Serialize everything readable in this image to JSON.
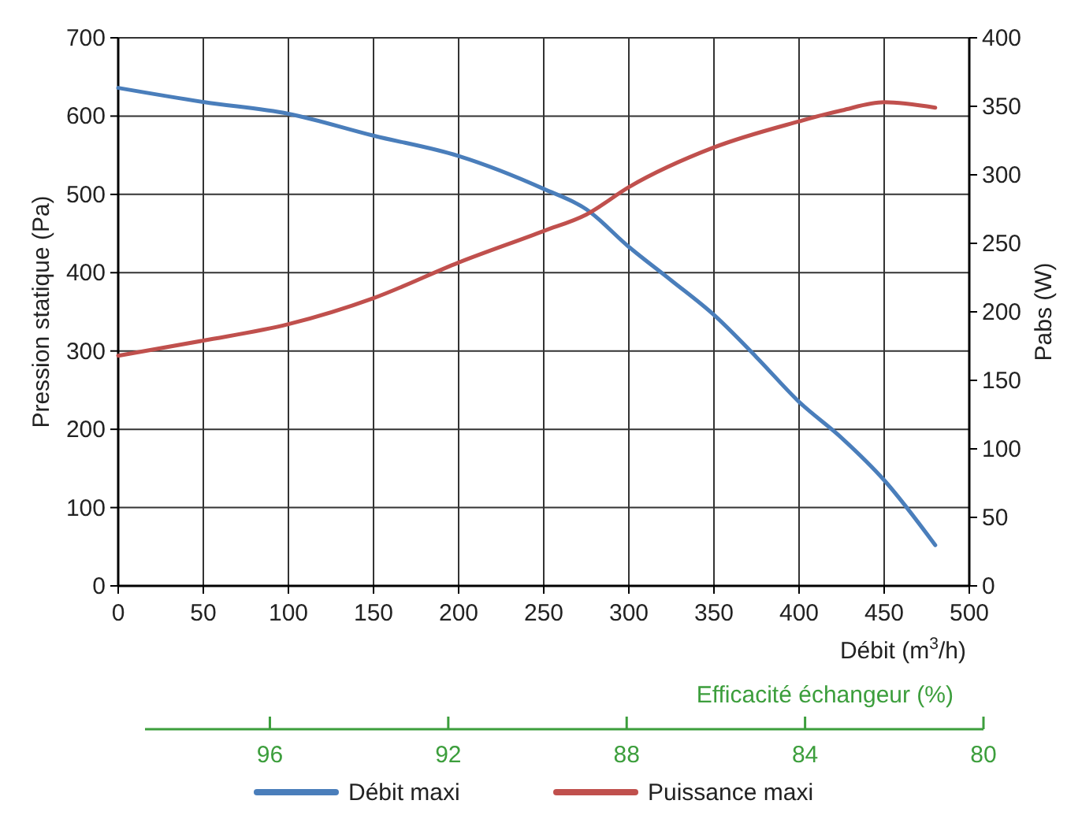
{
  "chart_data": {
    "type": "line",
    "xlabel": "Débit (m$^{3}$/h)",
    "ylabel": "Pression statique (Pa)",
    "y2label": "Pabs (W)",
    "x2label": "Efficacité échangeur (%)",
    "xlim": [
      0,
      500
    ],
    "xticks": [
      0,
      50,
      100,
      150,
      200,
      250,
      300,
      350,
      400,
      450,
      500
    ],
    "ylim": [
      0,
      700
    ],
    "yticks": [
      0,
      100,
      200,
      300,
      400,
      500,
      600,
      700
    ],
    "y2lim": [
      0,
      400
    ],
    "y2ticks": [
      0,
      50,
      100,
      150,
      200,
      250,
      300,
      350,
      400
    ],
    "x2lim": [
      98.8,
      80
    ],
    "x2ticks": [
      96,
      92,
      88,
      84,
      80
    ],
    "grid": true,
    "legend": "bottom",
    "series": [
      {
        "name": "Débit maxi",
        "color": "#4a7ebb",
        "x": [
          0,
          50,
          100,
          150,
          200,
          250,
          275,
          300,
          325,
          350,
          375,
          400,
          425,
          450,
          480
        ],
        "values": [
          636,
          618,
          603,
          575,
          549,
          507,
          481,
          433,
          390,
          346,
          292,
          235,
          189,
          135,
          52
        ]
      },
      {
        "name": "Puissance maxi",
        "color": "#c0504d",
        "axis": "y2",
        "x": [
          0,
          50,
          100,
          150,
          200,
          250,
          275,
          300,
          350,
          400,
          415,
          425,
          450,
          480
        ],
        "values": [
          168,
          179,
          191,
          210,
          236,
          259,
          271,
          291,
          320,
          339,
          344,
          347,
          353,
          349
        ]
      }
    ]
  }
}
